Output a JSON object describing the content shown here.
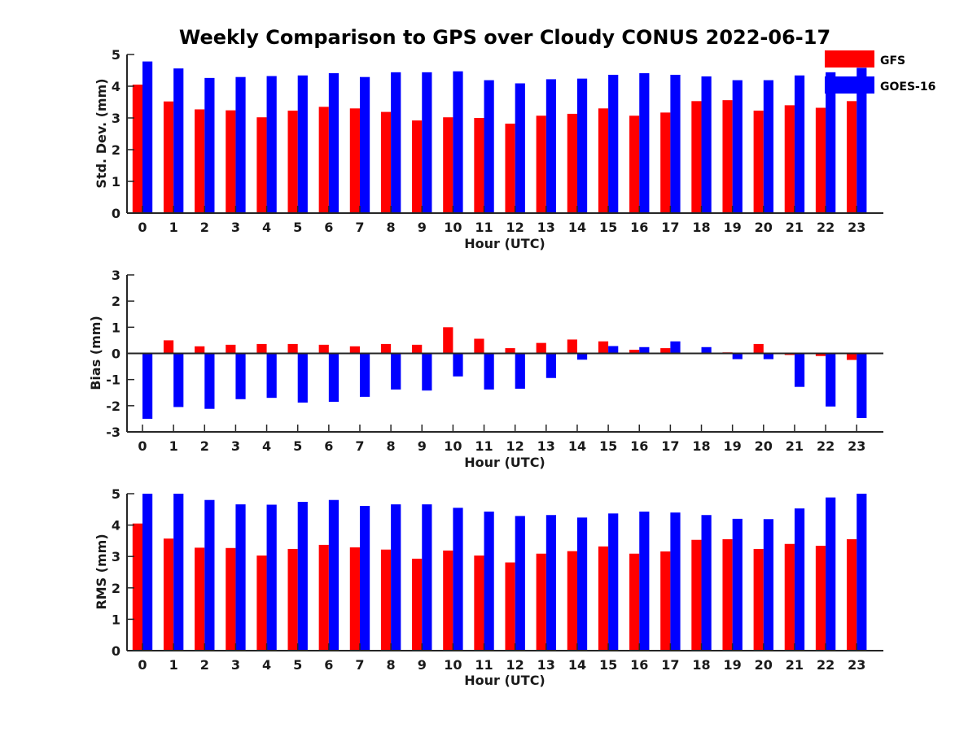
{
  "title": "Weekly Comparison to GPS over Cloudy CONUS 2022-06-17",
  "colors": {
    "GFS": "#ff0000",
    "GOES-16": "#0000ff"
  },
  "legend": {
    "entries": [
      "GFS",
      "GOES-16"
    ],
    "placement": "top-right"
  },
  "chart_data": [
    {
      "type": "bar",
      "xlabel": "Hour (UTC)",
      "ylabel": "Std. Dev. (mm)",
      "ylim": [
        0,
        5
      ],
      "yticks": [
        "0",
        "1",
        "2",
        "3",
        "4",
        "5"
      ],
      "categories": [
        "0",
        "1",
        "2",
        "3",
        "4",
        "5",
        "6",
        "7",
        "8",
        "9",
        "10",
        "11",
        "12",
        "13",
        "14",
        "15",
        "16",
        "17",
        "18",
        "19",
        "20",
        "21",
        "22",
        "23"
      ],
      "series": [
        {
          "name": "GFS",
          "values": [
            4.05,
            3.52,
            3.27,
            3.24,
            3.02,
            3.23,
            3.35,
            3.3,
            3.19,
            2.92,
            3.02,
            3.0,
            2.82,
            3.07,
            3.13,
            3.3,
            3.07,
            3.17,
            3.53,
            3.56,
            3.23,
            3.4,
            3.32,
            3.53
          ]
        },
        {
          "name": "GOES-16",
          "values": [
            4.78,
            4.56,
            4.26,
            4.29,
            4.32,
            4.34,
            4.41,
            4.29,
            4.44,
            4.44,
            4.47,
            4.19,
            4.09,
            4.22,
            4.24,
            4.36,
            4.41,
            4.36,
            4.31,
            4.19,
            4.19,
            4.34,
            4.44,
            4.58
          ]
        }
      ]
    },
    {
      "type": "bar",
      "xlabel": "Hour (UTC)",
      "ylabel": "Bias (mm)",
      "ylim": [
        -3,
        3
      ],
      "yticks": [
        "-3",
        "-2",
        "-1",
        "0",
        "1",
        "2",
        "3"
      ],
      "categories": [
        "0",
        "1",
        "2",
        "3",
        "4",
        "5",
        "6",
        "7",
        "8",
        "9",
        "10",
        "11",
        "12",
        "13",
        "14",
        "15",
        "16",
        "17",
        "18",
        "19",
        "20",
        "21",
        "22",
        "23"
      ],
      "series": [
        {
          "name": "GFS",
          "values": [
            0.0,
            0.5,
            0.27,
            0.33,
            0.36,
            0.36,
            0.33,
            0.27,
            0.36,
            0.33,
            1.0,
            0.56,
            0.2,
            0.4,
            0.53,
            0.46,
            0.14,
            0.2,
            -0.03,
            0.04,
            0.36,
            -0.06,
            -0.1,
            -0.25
          ]
        },
        {
          "name": "GOES-16",
          "values": [
            -2.5,
            -2.05,
            -2.12,
            -1.75,
            -1.7,
            -1.88,
            -1.85,
            -1.66,
            -1.38,
            -1.42,
            -0.88,
            -1.38,
            -1.35,
            -0.94,
            -0.24,
            0.28,
            0.24,
            0.46,
            0.24,
            -0.22,
            -0.22,
            -1.28,
            -2.03,
            -2.47
          ]
        }
      ]
    },
    {
      "type": "bar",
      "xlabel": "Hour (UTC)",
      "ylabel": "RMS (mm)",
      "ylim": [
        0,
        5
      ],
      "yticks": [
        "0",
        "1",
        "2",
        "3",
        "4",
        "5"
      ],
      "categories": [
        "0",
        "1",
        "2",
        "3",
        "4",
        "5",
        "6",
        "7",
        "8",
        "9",
        "10",
        "11",
        "12",
        "13",
        "14",
        "15",
        "16",
        "17",
        "18",
        "19",
        "20",
        "21",
        "22",
        "23"
      ],
      "series": [
        {
          "name": "GFS",
          "values": [
            4.05,
            3.57,
            3.28,
            3.27,
            3.03,
            3.24,
            3.37,
            3.29,
            3.22,
            2.93,
            3.19,
            3.03,
            2.81,
            3.09,
            3.17,
            3.32,
            3.09,
            3.16,
            3.53,
            3.55,
            3.24,
            3.4,
            3.34,
            3.55
          ]
        },
        {
          "name": "GOES-16",
          "values": [
            5.0,
            5.0,
            4.8,
            4.66,
            4.65,
            4.74,
            4.8,
            4.61,
            4.66,
            4.66,
            4.55,
            4.43,
            4.29,
            4.32,
            4.24,
            4.37,
            4.43,
            4.4,
            4.32,
            4.2,
            4.19,
            4.53,
            4.88,
            5.0
          ]
        }
      ]
    }
  ]
}
